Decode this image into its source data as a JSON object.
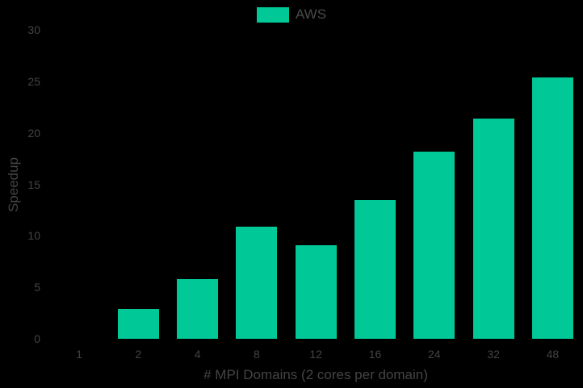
{
  "chart_data": {
    "type": "bar",
    "title": "",
    "categories": [
      "1",
      "2",
      "4",
      "8",
      "12",
      "16",
      "24",
      "32",
      "48"
    ],
    "series": [
      {
        "name": "AWS",
        "color": "#00c896",
        "values": [
          0,
          2.9,
          5.8,
          10.9,
          9.1,
          13.5,
          18.2,
          21.4,
          25.4
        ]
      }
    ],
    "xlabel": "# MPI Domains (2 cores per domain)",
    "ylabel": "Speedup",
    "ylim": [
      0,
      30
    ],
    "yticks": [
      0,
      5,
      10,
      15,
      20,
      25,
      30
    ],
    "grid": false,
    "legend_position": "top-center",
    "background": "#000000"
  },
  "legend": {
    "label": "AWS",
    "color": "#00c896"
  },
  "axes": {
    "xlabel": "# MPI Domains (2 cores per domain)",
    "ylabel": "Speedup"
  }
}
